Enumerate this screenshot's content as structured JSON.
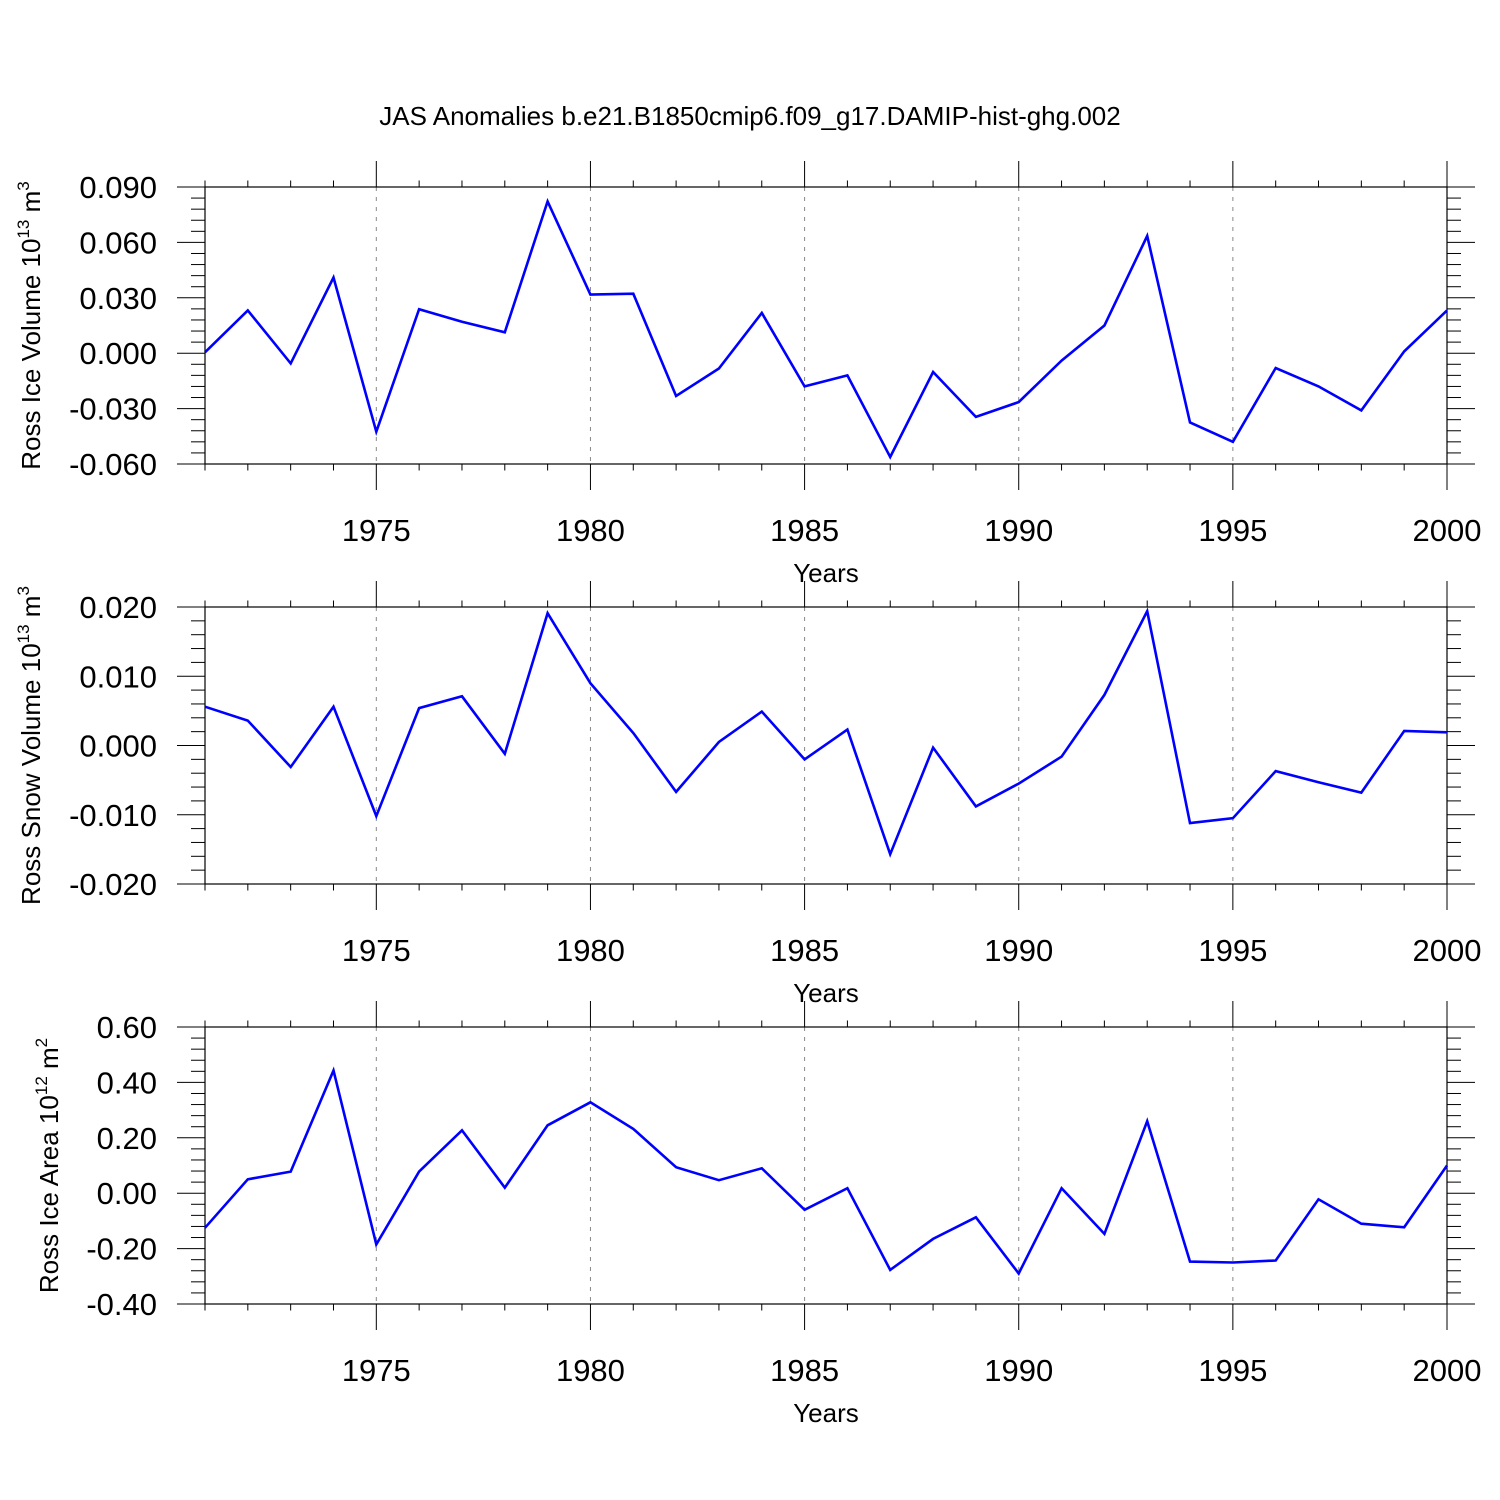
{
  "figure": {
    "title": "JAS Anomalies b.e21.B1850cmip6.f09_g17.DAMIP-hist-ghg.002"
  },
  "colors": {
    "series": "#0000ff",
    "axis": "#000000",
    "grid": "#888888"
  },
  "chart_data": [
    {
      "type": "line",
      "xlabel": "Years",
      "ylabel": {
        "main": "Ross Ice Volume 10",
        "sup": "13",
        "unit": " m",
        "unit_sup": "3"
      },
      "xlim": [
        1971,
        2000
      ],
      "ylim": [
        -0.06,
        0.09
      ],
      "xticks": [
        1975,
        1980,
        1985,
        1990,
        1995,
        2000
      ],
      "xtick_labels": [
        "1975",
        "1980",
        "1985",
        "1990",
        "1995",
        "2000"
      ],
      "yticks": [
        -0.06,
        -0.03,
        0.0,
        0.03,
        0.06,
        0.09
      ],
      "ytick_labels": [
        "-0.060",
        "-0.030",
        "0.000",
        "0.030",
        "0.060",
        "0.090"
      ],
      "grid": "vertical dashed at major x ticks",
      "x": [
        1971,
        1972,
        1973,
        1974,
        1975,
        1976,
        1977,
        1978,
        1979,
        1980,
        1981,
        1982,
        1983,
        1984,
        1985,
        1986,
        1987,
        1988,
        1989,
        1990,
        1991,
        1992,
        1993,
        1994,
        1995,
        1996,
        1997,
        1998,
        1999,
        2000
      ],
      "series": [
        {
          "values": [
            0.0005,
            0.0232,
            -0.0055,
            0.041,
            -0.0425,
            0.0238,
            0.017,
            0.0113,
            0.0822,
            0.0318,
            0.0322,
            -0.0232,
            -0.0083,
            0.0218,
            -0.018,
            -0.012,
            -0.0562,
            -0.0102,
            -0.0345,
            -0.0265,
            -0.004,
            0.015,
            0.0635,
            -0.0375,
            -0.048,
            -0.008,
            -0.018,
            -0.031,
            0.001,
            0.0232
          ]
        }
      ]
    },
    {
      "type": "line",
      "xlabel": "Years",
      "ylabel": {
        "main": "Ross Snow Volume 10",
        "sup": "13",
        "unit": " m",
        "unit_sup": "3"
      },
      "xlim": [
        1971,
        2000
      ],
      "ylim": [
        -0.02,
        0.02
      ],
      "xticks": [
        1975,
        1980,
        1985,
        1990,
        1995,
        2000
      ],
      "xtick_labels": [
        "1975",
        "1980",
        "1985",
        "1990",
        "1995",
        "2000"
      ],
      "yticks": [
        -0.02,
        -0.01,
        0.0,
        0.01,
        0.02
      ],
      "ytick_labels": [
        "-0.020",
        "-0.010",
        "0.000",
        "0.010",
        "0.020"
      ],
      "grid": "vertical dashed at major x ticks",
      "x": [
        1971,
        1972,
        1973,
        1974,
        1975,
        1976,
        1977,
        1978,
        1979,
        1980,
        1981,
        1982,
        1983,
        1984,
        1985,
        1986,
        1987,
        1988,
        1989,
        1990,
        1991,
        1992,
        1993,
        1994,
        1995,
        1996,
        1997,
        1998,
        1999,
        2000
      ],
      "series": [
        {
          "values": [
            0.0056,
            0.0036,
            -0.0031,
            0.0056,
            -0.0102,
            0.0054,
            0.0071,
            -0.0012,
            0.0191,
            0.009,
            0.0018,
            -0.0067,
            0.0005,
            0.0049,
            -0.002,
            0.0023,
            -0.0157,
            -0.0003,
            -0.0088,
            -0.0055,
            -0.0016,
            0.0073,
            0.0194,
            -0.0112,
            -0.0105,
            -0.0037,
            -0.0053,
            -0.0068,
            0.0021,
            0.0019
          ]
        }
      ]
    },
    {
      "type": "line",
      "xlabel": "Years",
      "ylabel": {
        "main": "Ross Ice Area 10",
        "sup": "12",
        "unit": " m",
        "unit_sup": "2"
      },
      "xlim": [
        1971,
        2000
      ],
      "ylim": [
        -0.4,
        0.6
      ],
      "xticks": [
        1975,
        1980,
        1985,
        1990,
        1995,
        2000
      ],
      "xtick_labels": [
        "1975",
        "1980",
        "1985",
        "1990",
        "1995",
        "2000"
      ],
      "yticks": [
        -0.4,
        -0.2,
        0.0,
        0.2,
        0.4,
        0.6
      ],
      "ytick_labels": [
        "-0.40",
        "-0.20",
        "0.00",
        "0.20",
        "0.40",
        "0.60"
      ],
      "grid": "vertical dashed at major x ticks",
      "x": [
        1971,
        1972,
        1973,
        1974,
        1975,
        1976,
        1977,
        1978,
        1979,
        1980,
        1981,
        1982,
        1983,
        1984,
        1985,
        1986,
        1987,
        1988,
        1989,
        1990,
        1991,
        1992,
        1993,
        1994,
        1995,
        1996,
        1997,
        1998,
        1999,
        2000
      ],
      "series": [
        {
          "values": [
            -0.125,
            0.05,
            0.078,
            0.443,
            -0.185,
            0.078,
            0.227,
            0.02,
            0.245,
            0.328,
            0.232,
            0.094,
            0.047,
            0.09,
            -0.06,
            0.018,
            -0.277,
            -0.165,
            -0.087,
            -0.29,
            0.018,
            -0.147,
            0.26,
            -0.247,
            -0.25,
            -0.243,
            -0.022,
            -0.11,
            -0.123,
            0.1
          ]
        }
      ]
    }
  ]
}
